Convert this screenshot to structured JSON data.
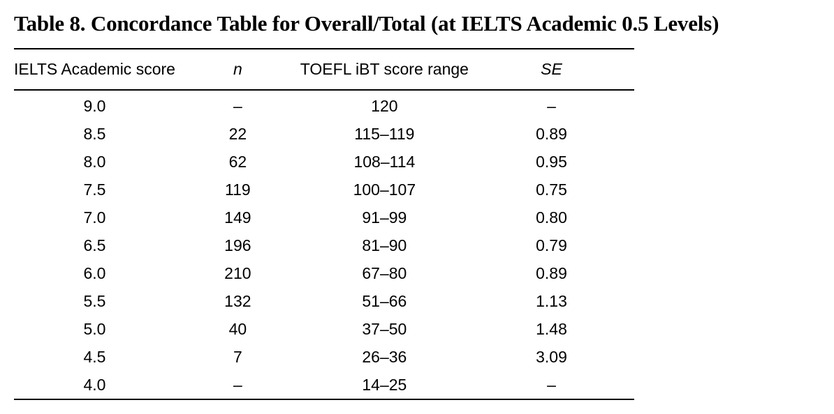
{
  "caption": "Table 8. Concordance Table for Overall/Total (at IELTS Academic 0.5 Levels)",
  "table": {
    "headers": [
      "IELTS Academic score",
      "n",
      "TOEFL iBT score range",
      "SE"
    ],
    "rows": [
      [
        "9.0",
        "–",
        "120",
        "–"
      ],
      [
        "8.5",
        "22",
        "115–119",
        "0.89"
      ],
      [
        "8.0",
        "62",
        "108–114",
        "0.95"
      ],
      [
        "7.5",
        "119",
        "100–107",
        "0.75"
      ],
      [
        "7.0",
        "149",
        "91–99",
        "0.80"
      ],
      [
        "6.5",
        "196",
        "81–90",
        "0.79"
      ],
      [
        "6.0",
        "210",
        "67–80",
        "0.89"
      ],
      [
        "5.5",
        "132",
        "51–66",
        "1.13"
      ],
      [
        "5.0",
        "40",
        "37–50",
        "1.48"
      ],
      [
        "4.5",
        "7",
        "26–36",
        "3.09"
      ],
      [
        "4.0",
        "–",
        "14–25",
        "–"
      ]
    ]
  }
}
